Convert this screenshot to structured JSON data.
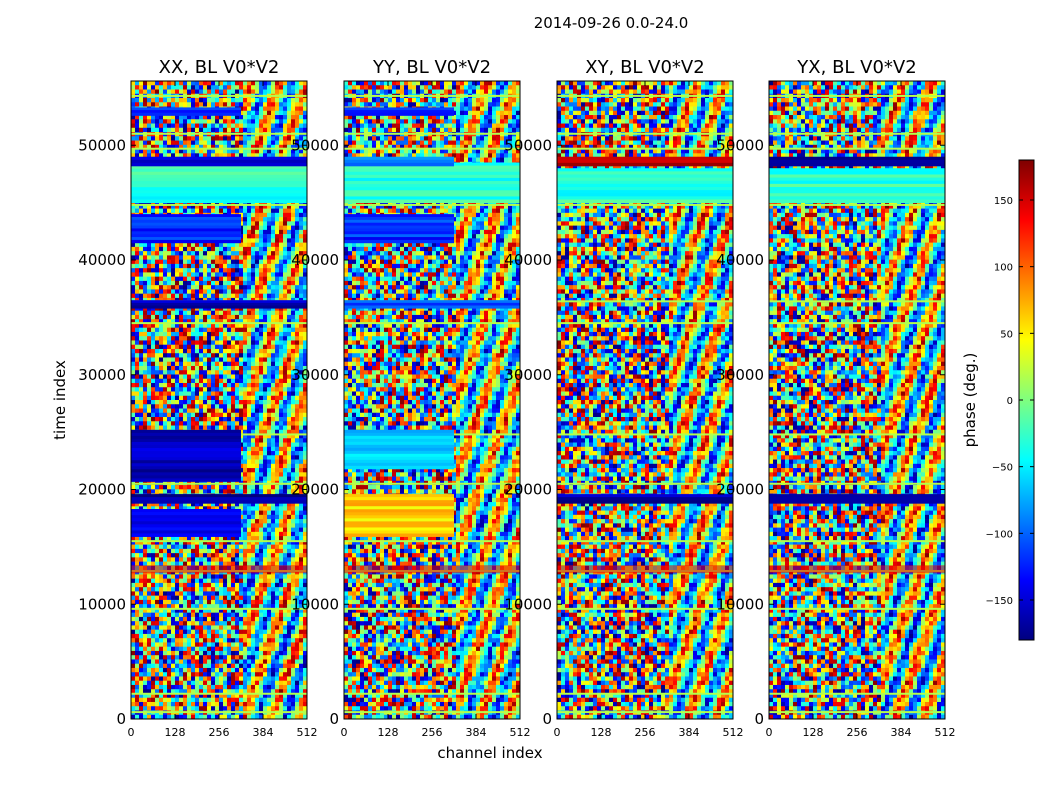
{
  "chart_data": {
    "type": "heatmap",
    "suptitle": "2014-09-26 0.0-24.0",
    "xlabel": "channel index",
    "ylabel": "time index",
    "xlim": [
      0,
      512
    ],
    "ylim": [
      0,
      55600
    ],
    "xticks": [
      0,
      128,
      256,
      384,
      512
    ],
    "yticks": [
      0,
      10000,
      20000,
      30000,
      40000,
      50000
    ],
    "colormap": "jet",
    "colorbar": {
      "label": "phase (deg.)",
      "range": [
        -180,
        180
      ],
      "ticks": [
        -150,
        -100,
        -50,
        0,
        50,
        100,
        150
      ],
      "tick_labels": [
        "−150",
        "−100",
        "−50",
        "0",
        "50",
        "100",
        "150"
      ],
      "colors": [
        "#00007f",
        "#0000ff",
        "#007fff",
        "#00ffff",
        "#7fff7f",
        "#ffff00",
        "#ff7f00",
        "#ff0000",
        "#7f0000"
      ]
    },
    "panels": [
      {
        "title": "XX, BL V0*V2",
        "features": [
          {
            "t": [
              20700,
              25200
            ],
            "ch": [
              0,
              320
            ],
            "phase": -160
          },
          {
            "t": [
              18800,
              19600
            ],
            "ch": [
              0,
              512
            ],
            "phase": -165
          },
          {
            "t": [
              15900,
              18300
            ],
            "ch": [
              0,
              320
            ],
            "phase": -130
          },
          {
            "t": [
              41500,
              44000
            ],
            "ch": [
              0,
              320
            ],
            "phase": -120
          },
          {
            "t": [
              45000,
              48500
            ],
            "ch": [
              0,
              512
            ],
            "phase": -30
          },
          {
            "t": [
              48200,
              49000
            ],
            "ch": [
              0,
              512
            ],
            "phase": -160
          },
          {
            "t": [
              35800,
              36500
            ],
            "ch": [
              0,
              512
            ],
            "phase": -160
          },
          {
            "t": [
              52600,
              53300
            ],
            "ch": [
              0,
              320
            ],
            "phase": -110
          }
        ]
      },
      {
        "title": "YY, BL V0*V2",
        "features": [
          {
            "t": [
              21800,
              25200
            ],
            "ch": [
              0,
              320
            ],
            "phase": -60
          },
          {
            "t": [
              15900,
              19600
            ],
            "ch": [
              0,
              320
            ],
            "phase": 60
          },
          {
            "t": [
              41500,
              44000
            ],
            "ch": [
              0,
              320
            ],
            "phase": -120
          },
          {
            "t": [
              45000,
              48500
            ],
            "ch": [
              0,
              512
            ],
            "phase": -30
          },
          {
            "t": [
              48200,
              49000
            ],
            "ch": [
              0,
              320
            ],
            "phase": -100
          },
          {
            "t": [
              35800,
              36500
            ],
            "ch": [
              0,
              512
            ],
            "phase": -110
          },
          {
            "t": [
              52600,
              53300
            ],
            "ch": [
              0,
              320
            ],
            "phase": -110
          }
        ]
      },
      {
        "title": "XY, BL V0*V2",
        "features": [
          {
            "t": [
              48200,
              49000
            ],
            "ch": [
              0,
              512
            ],
            "phase": 150
          },
          {
            "t": [
              18800,
              19600
            ],
            "ch": [
              0,
              512
            ],
            "phase": -165
          },
          {
            "t": [
              45000,
              48000
            ],
            "ch": [
              0,
              512
            ],
            "phase": -30
          }
        ]
      },
      {
        "title": "YX, BL V0*V2",
        "features": [
          {
            "t": [
              48200,
              49000
            ],
            "ch": [
              0,
              512
            ],
            "phase": -165
          },
          {
            "t": [
              18800,
              19600
            ],
            "ch": [
              0,
              512
            ],
            "phase": -165
          },
          {
            "t": [
              45000,
              48000
            ],
            "ch": [
              0,
              512
            ],
            "phase": -30
          }
        ]
      }
    ]
  }
}
